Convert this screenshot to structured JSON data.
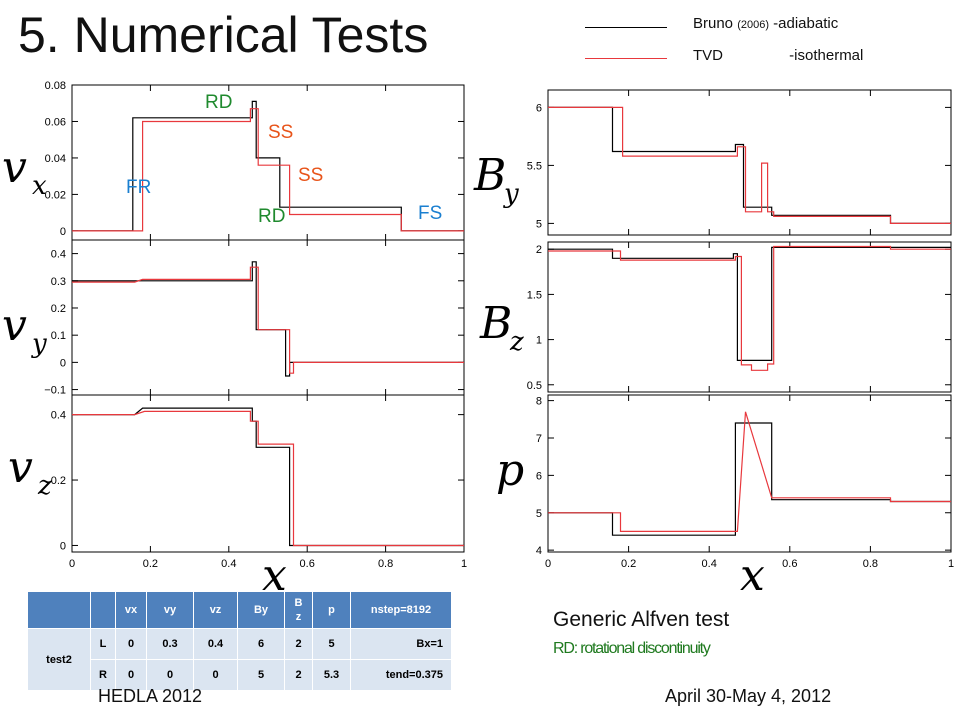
{
  "slide": {
    "title": "5. Numerical Tests",
    "legend": {
      "black": {
        "label": "Bruno",
        "year": "(2006)",
        "suffix": "-adiabatic",
        "color": "#000000"
      },
      "red": {
        "label": "TVD",
        "suffix": "-isothermal",
        "color": "#e8383d"
      }
    },
    "annotations": {
      "rd1": "RD",
      "ss1": "SS",
      "ss2": "SS",
      "fr": "FR",
      "rd2": "RD",
      "fs": "FS"
    },
    "annotation_colors": {
      "RD": "#1f8a2e",
      "SS": "#e8541a",
      "FR": "#1a7fd0",
      "FS": "#1a7fd0"
    },
    "generic_title": "Generic Alfven test",
    "rd_note": "RD: rotational discontinuity",
    "footer_left": "HEDLA 2012",
    "footer_right": "April 30-May 4, 2012",
    "xlabel": "x"
  },
  "table": {
    "header": [
      "",
      "",
      "vx",
      "vy",
      "vz",
      "By",
      "Bz",
      "p",
      "nstep=8192"
    ],
    "header_bz": [
      "B",
      "z"
    ],
    "group": "test2",
    "rows": [
      {
        "side": "L",
        "vx": "0",
        "vy": "0.3",
        "vz": "0.4",
        "by": "6",
        "bz": "2",
        "p": "5",
        "note": "Bx=1"
      },
      {
        "side": "R",
        "vx": "0",
        "vy": "0",
        "vz": "0",
        "by": "5",
        "bz": "2",
        "p": "5.3",
        "note": "tend=0.375"
      }
    ]
  },
  "chart_data": [
    {
      "type": "line",
      "ylabel": "v",
      "ysub": "x",
      "xlim": [
        0,
        1
      ],
      "ylim": [
        -0.005,
        0.08
      ],
      "yticks": [
        0,
        0.02,
        0.04,
        0.06,
        0.08
      ],
      "ytick_labels": [
        "0",
        "0.02",
        "0.04",
        "0.06",
        "0.08"
      ],
      "xticks": [
        0,
        0.2,
        0.4,
        0.6,
        0.8,
        1
      ],
      "xtick_labels": [],
      "series": [
        {
          "color": "#000000",
          "x": [
            0,
            0.155,
            0.155,
            0.46,
            0.46,
            0.47,
            0.47,
            0.53,
            0.53,
            0.84,
            0.84,
            1
          ],
          "y": [
            0,
            0,
            0.062,
            0.062,
            0.071,
            0.071,
            0.04,
            0.04,
            0.013,
            0.013,
            0,
            0
          ]
        },
        {
          "color": "#e8383d",
          "x": [
            0,
            0.18,
            0.18,
            0.455,
            0.455,
            0.475,
            0.475,
            0.555,
            0.555,
            0.84,
            0.84,
            1
          ],
          "y": [
            0,
            0,
            0.06,
            0.06,
            0.067,
            0.067,
            0.036,
            0.036,
            0.009,
            0.009,
            0,
            0
          ]
        }
      ]
    },
    {
      "type": "line",
      "ylabel": "B",
      "ysub": "y",
      "xlim": [
        0,
        1
      ],
      "ylim": [
        4.9,
        6.15
      ],
      "yticks": [
        5,
        5.5,
        6
      ],
      "ytick_labels": [
        "5",
        "5.5",
        "6"
      ],
      "xticks": [
        0,
        0.2,
        0.4,
        0.6,
        0.8,
        1
      ],
      "xtick_labels": [],
      "series": [
        {
          "color": "#000000",
          "x": [
            0,
            0.16,
            0.16,
            0.465,
            0.465,
            0.485,
            0.485,
            0.555,
            0.555,
            0.85,
            0.85,
            1
          ],
          "y": [
            6,
            6,
            5.62,
            5.62,
            5.68,
            5.68,
            5.14,
            5.14,
            5.07,
            5.07,
            5,
            5
          ]
        },
        {
          "color": "#e8383d",
          "x": [
            0,
            0.185,
            0.185,
            0.47,
            0.47,
            0.49,
            0.49,
            0.53,
            0.53,
            0.545,
            0.545,
            0.56,
            0.56,
            0.85,
            0.85,
            1
          ],
          "y": [
            6,
            6,
            5.58,
            5.58,
            5.66,
            5.66,
            5.1,
            5.1,
            5.52,
            5.52,
            5.1,
            5.1,
            5.06,
            5.06,
            5,
            5
          ]
        }
      ]
    },
    {
      "type": "line",
      "ylabel": "v",
      "ysub": "y",
      "xlim": [
        0,
        1
      ],
      "ylim": [
        -0.12,
        0.45
      ],
      "yticks": [
        -0.1,
        0,
        0.1,
        0.2,
        0.3,
        0.4
      ],
      "ytick_labels": [
        "−0.1",
        "0",
        "0.1",
        "0.2",
        "0.3",
        "0.4"
      ],
      "xticks": [
        0,
        0.2,
        0.4,
        0.6,
        0.8,
        1
      ],
      "xtick_labels": [],
      "series": [
        {
          "color": "#000000",
          "x": [
            0,
            0.16,
            0.18,
            0.46,
            0.46,
            0.47,
            0.47,
            0.545,
            0.545,
            0.555,
            0.555,
            1
          ],
          "y": [
            0.3,
            0.3,
            0.3,
            0.3,
            0.37,
            0.37,
            0.12,
            0.12,
            -0.05,
            -0.05,
            0,
            0
          ]
        },
        {
          "color": "#e8383d",
          "x": [
            0,
            0.16,
            0.18,
            0.455,
            0.455,
            0.475,
            0.475,
            0.555,
            0.555,
            0.565,
            0.565,
            1
          ],
          "y": [
            0.295,
            0.295,
            0.305,
            0.305,
            0.35,
            0.35,
            0.12,
            0.12,
            -0.04,
            -0.04,
            0,
            0
          ]
        }
      ]
    },
    {
      "type": "line",
      "ylabel": "B",
      "ysub": "z",
      "xlim": [
        0,
        1
      ],
      "ylim": [
        0.42,
        2.08
      ],
      "yticks": [
        0.5,
        1,
        1.5,
        2
      ],
      "ytick_labels": [
        "0.5",
        "1",
        "1.5",
        "2"
      ],
      "xticks": [
        0,
        0.2,
        0.4,
        0.6,
        0.8,
        1
      ],
      "xtick_labels": [],
      "series": [
        {
          "color": "#000000",
          "x": [
            0,
            0.16,
            0.16,
            0.46,
            0.46,
            0.47,
            0.47,
            0.555,
            0.555,
            1
          ],
          "y": [
            2,
            2,
            1.9,
            1.9,
            1.95,
            1.95,
            0.77,
            0.77,
            2.02,
            2.02
          ]
        },
        {
          "color": "#e8383d",
          "x": [
            0,
            0.18,
            0.18,
            0.465,
            0.465,
            0.48,
            0.48,
            0.505,
            0.505,
            0.545,
            0.545,
            0.56,
            0.56,
            0.85,
            0.85,
            1
          ],
          "y": [
            1.98,
            1.98,
            1.88,
            1.88,
            1.92,
            1.92,
            0.72,
            0.72,
            0.66,
            0.66,
            0.73,
            0.73,
            2.03,
            2.03,
            2,
            2
          ]
        }
      ]
    },
    {
      "type": "line",
      "ylabel": "v",
      "ysub": "z",
      "xlim": [
        0,
        1
      ],
      "ylim": [
        -0.02,
        0.46
      ],
      "yticks": [
        0,
        0.2,
        0.4
      ],
      "ytick_labels": [
        "0",
        "0.2",
        "0.4"
      ],
      "xticks": [
        0,
        0.2,
        0.4,
        0.6,
        0.8,
        1
      ],
      "xtick_labels": [
        "0",
        "0.2",
        "0.4",
        "0.6",
        "0.8",
        "1"
      ],
      "series": [
        {
          "color": "#000000",
          "x": [
            0,
            0.16,
            0.18,
            0.46,
            0.46,
            0.47,
            0.47,
            0.555,
            0.555,
            1
          ],
          "y": [
            0.4,
            0.4,
            0.42,
            0.42,
            0.38,
            0.38,
            0.3,
            0.3,
            0,
            0
          ]
        },
        {
          "color": "#e8383d",
          "x": [
            0,
            0.16,
            0.185,
            0.455,
            0.455,
            0.475,
            0.475,
            0.565,
            0.565,
            1
          ],
          "y": [
            0.4,
            0.4,
            0.41,
            0.41,
            0.38,
            0.38,
            0.31,
            0.31,
            0,
            0
          ]
        }
      ]
    },
    {
      "type": "line",
      "ylabel": "p",
      "ysub": "",
      "xlim": [
        0,
        1
      ],
      "ylim": [
        3.95,
        8.15
      ],
      "yticks": [
        4,
        5,
        6,
        7,
        8
      ],
      "ytick_labels": [
        "4",
        "5",
        "6",
        "7",
        "8"
      ],
      "xticks": [
        0,
        0.2,
        0.4,
        0.6,
        0.8,
        1
      ],
      "xtick_labels": [
        "0",
        "0.2",
        "0.4",
        "0.6",
        "0.8",
        "1"
      ],
      "series": [
        {
          "color": "#000000",
          "x": [
            0,
            0.16,
            0.16,
            0.465,
            0.465,
            0.555,
            0.555,
            0.85,
            0.85,
            1
          ],
          "y": [
            5,
            5,
            4.4,
            4.4,
            7.4,
            7.4,
            5.35,
            5.35,
            5.3,
            5.3
          ]
        },
        {
          "color": "#e8383d",
          "x": [
            0,
            0.18,
            0.18,
            0.47,
            0.47,
            0.49,
            0.49,
            0.555,
            0.555,
            0.85,
            0.85,
            1
          ],
          "y": [
            5,
            5,
            4.5,
            4.5,
            4.5,
            7.7,
            7.7,
            5.4,
            5.4,
            5.4,
            5.3,
            5.3
          ]
        }
      ]
    }
  ]
}
